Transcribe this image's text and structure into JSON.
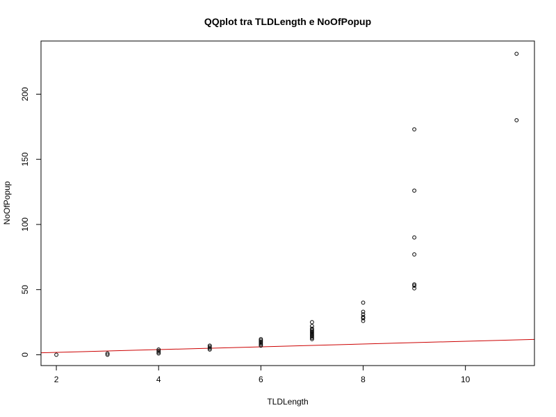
{
  "chart_data": {
    "type": "scatter",
    "title": "QQplot tra TLDLength e NoOfPopup",
    "xlabel": "TLDLength",
    "ylabel": "NoOfPopup",
    "xlim": [
      1.7,
      11.35
    ],
    "ylim": [
      -8.3,
      240.8
    ],
    "xticks": [
      2,
      4,
      6,
      8,
      10
    ],
    "yticks": [
      0,
      50,
      100,
      150,
      200
    ],
    "grid": false,
    "legend": "none",
    "point_color": "#000000",
    "line_color": "#cc0000",
    "points": {
      "x": [
        2,
        3,
        3,
        4,
        4,
        4,
        4,
        5,
        5,
        5,
        5,
        6,
        6,
        6,
        6,
        6,
        6,
        7,
        7,
        7,
        7,
        7,
        7,
        7,
        7,
        7,
        7,
        7,
        8,
        8,
        8,
        8,
        8,
        8,
        9,
        9,
        9,
        9,
        9,
        9,
        9,
        11,
        11
      ],
      "y": [
        0,
        0,
        1,
        1,
        2,
        3,
        4,
        4,
        5,
        6,
        7,
        7,
        8,
        9,
        10,
        11,
        12,
        12,
        13,
        14,
        15,
        16,
        17,
        18,
        19,
        20,
        22,
        25,
        26,
        28,
        29,
        31,
        33,
        40,
        51,
        53,
        54,
        77,
        90,
        126,
        173,
        180,
        231
      ]
    },
    "reference_line": {
      "x": [
        1.7,
        11.35
      ],
      "y": [
        1.5,
        11.8
      ]
    }
  }
}
